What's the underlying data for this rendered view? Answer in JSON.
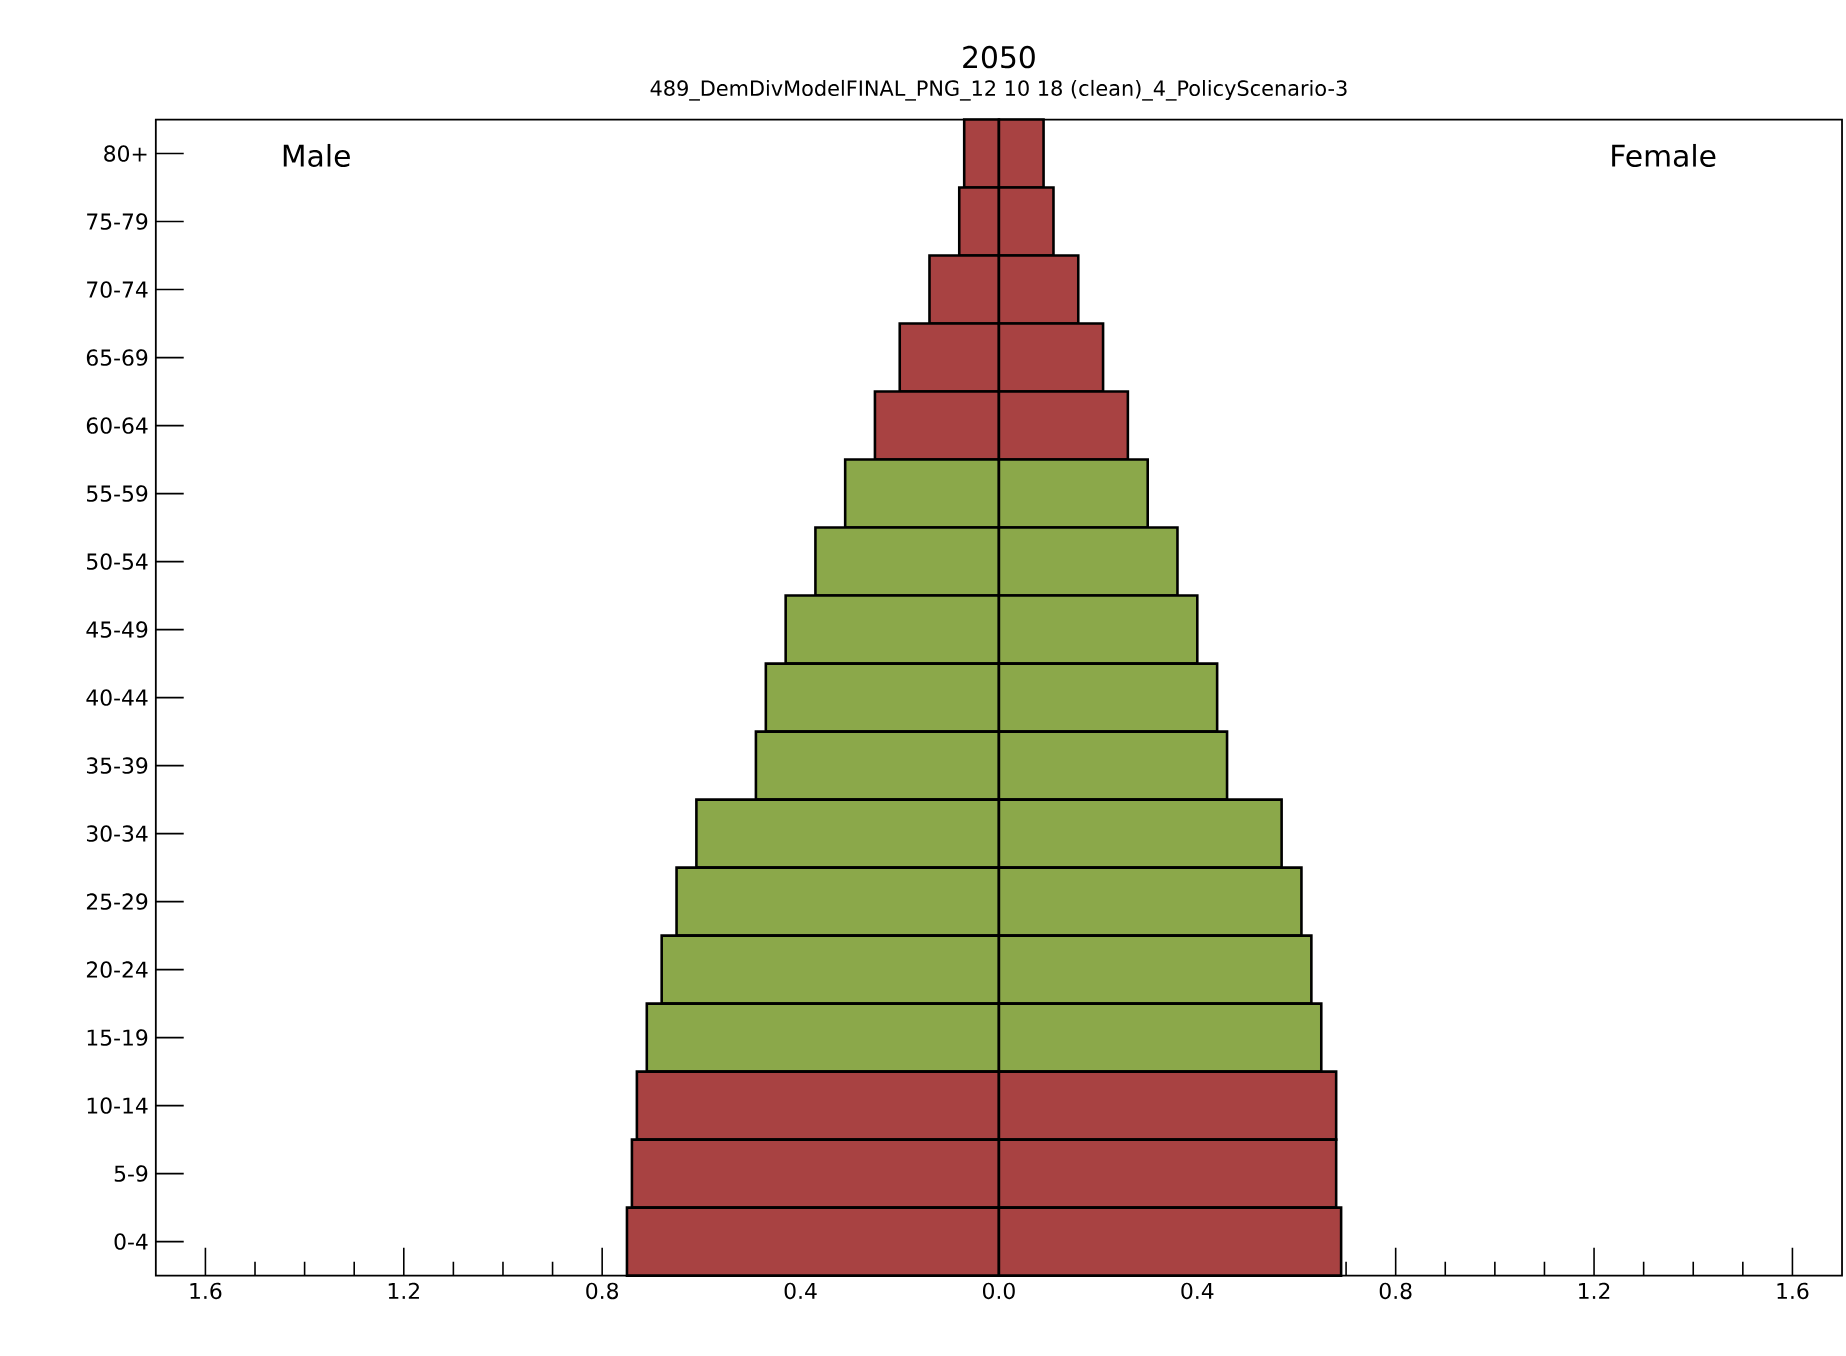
{
  "chart_data": {
    "type": "bar",
    "orientation": "horizontal",
    "title": "2050",
    "subtitle": "489_DemDivModelFINAL_PNG_12 10 18 (clean)_4_PolicyScenario-3",
    "categories": [
      "80+",
      "75-79",
      "70-74",
      "65-69",
      "60-64",
      "55-59",
      "50-54",
      "45-49",
      "40-44",
      "35-39",
      "30-34",
      "25-29",
      "20-24",
      "15-19",
      "10-14",
      "5-9",
      "0-4"
    ],
    "series": [
      {
        "colors": [
          "#a84242",
          "#a84242",
          "#a84242",
          "#a84242",
          "#a84242",
          "#8ba84a",
          "#8ba84a",
          "#8ba84a",
          "#8ba84a",
          "#8ba84a",
          "#8ba84a",
          "#8ba84a",
          "#8ba84a",
          "#8ba84a",
          "#a84242",
          "#a84242",
          "#a84242"
        ],
        "values": [
          -0.07,
          -0.08,
          -0.14,
          -0.2,
          -0.25,
          -0.31,
          -0.37,
          -0.43,
          -0.47,
          -0.49,
          -0.61,
          -0.65,
          -0.68,
          -0.71,
          -0.73,
          -0.74,
          -0.75
        ]
      },
      {
        "colors": [
          "#a84242",
          "#a84242",
          "#a84242",
          "#a84242",
          "#a84242",
          "#8ba84a",
          "#8ba84a",
          "#8ba84a",
          "#8ba84a",
          "#8ba84a",
          "#8ba84a",
          "#8ba84a",
          "#8ba84a",
          "#8ba84a",
          "#a84242",
          "#a84242",
          "#a84242"
        ],
        "values": [
          0.09,
          0.11,
          0.16,
          0.21,
          0.26,
          0.3,
          0.36,
          0.4,
          0.44,
          0.46,
          0.57,
          0.61,
          0.63,
          0.65,
          0.68,
          0.68,
          0.69
        ]
      }
    ],
    "xlim": [
      -1.7,
      1.7
    ],
    "xticks": [
      {
        "value": -1.6,
        "label": "1.6"
      },
      {
        "value": -1.5,
        "label": null
      },
      {
        "value": -1.4,
        "label": null
      },
      {
        "value": -1.3,
        "label": null
      },
      {
        "value": -1.2,
        "label": "1.2"
      },
      {
        "value": -1.1,
        "label": null
      },
      {
        "value": -1.0,
        "label": null
      },
      {
        "value": -0.9,
        "label": null
      },
      {
        "value": -0.8,
        "label": "0.8"
      },
      {
        "value": -0.7,
        "label": null
      },
      {
        "value": -0.6,
        "label": null
      },
      {
        "value": -0.5,
        "label": null
      },
      {
        "value": -0.4,
        "label": "0.4"
      },
      {
        "value": -0.3,
        "label": null
      },
      {
        "value": -0.2,
        "label": null
      },
      {
        "value": -0.1,
        "label": null
      },
      {
        "value": 0,
        "label": "0.0"
      },
      {
        "value": 0.1,
        "label": null
      },
      {
        "value": 0.2,
        "label": null
      },
      {
        "value": 0.3,
        "label": null
      },
      0.4,
      {
        "value": 0.5,
        "label": null
      },
      {
        "value": 0.6,
        "label": null
      },
      {
        "value": 0.7,
        "label": null
      },
      0.8,
      {
        "value": 0.9,
        "label": null
      },
      {
        "value": 1.0,
        "label": null
      },
      {
        "value": 1.1,
        "label": null
      },
      1.2,
      {
        "value": 1.3,
        "label": null
      },
      {
        "value": 1.4,
        "label": null
      },
      {
        "value": 1.5,
        "label": null
      },
      1.6
    ],
    "stacked": true,
    "annotations": [
      "Male",
      "Female"
    ]
  }
}
